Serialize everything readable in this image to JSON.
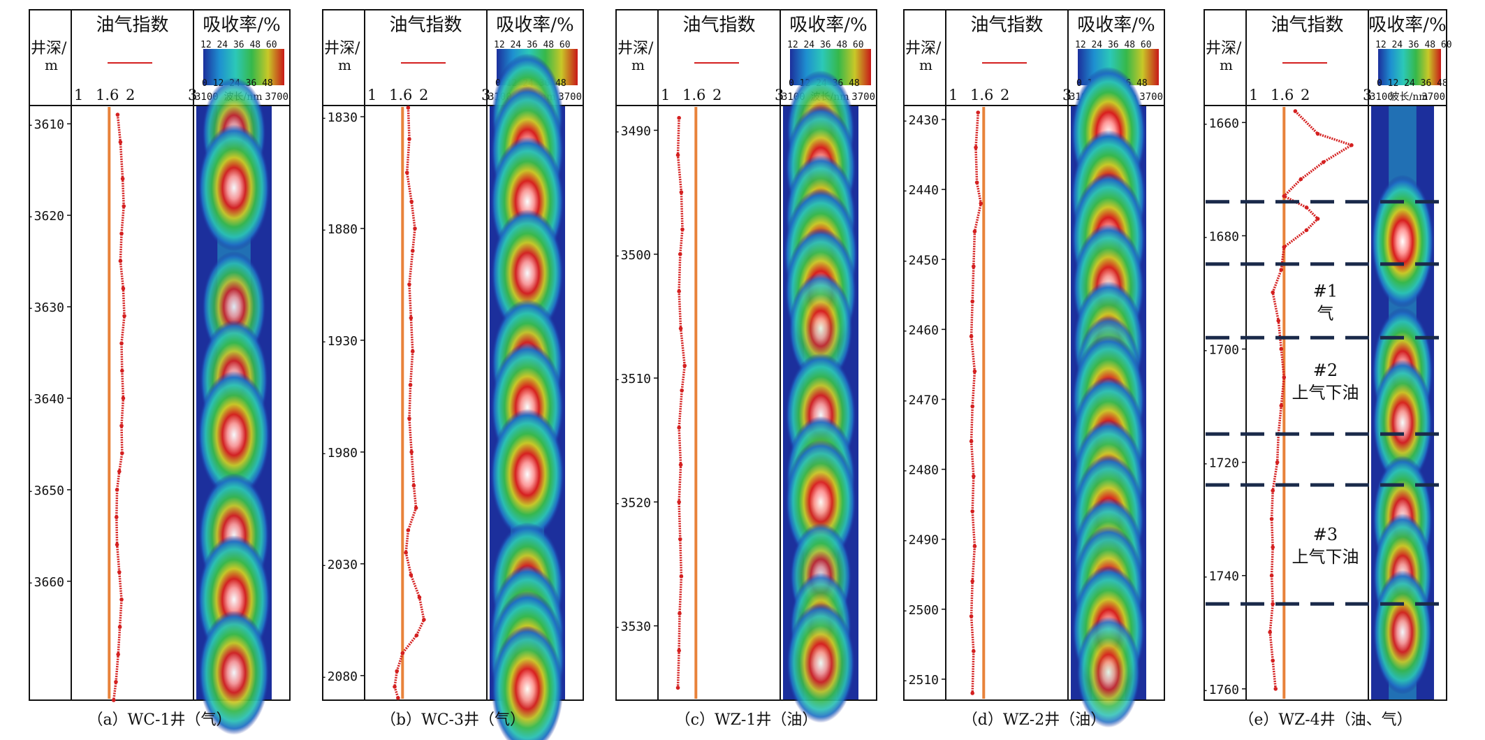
{
  "figure": {
    "header": {
      "depth_label_line1": "井深/",
      "depth_label_line2": "m",
      "oil_gas_title": "油气指数",
      "absorb_title": "吸收率/%",
      "oil_gas_ticks": [
        "1",
        "1.6",
        "2",
        "3"
      ],
      "colorbar_top_ticks": [
        "12",
        "24",
        "36",
        "48",
        "60"
      ],
      "colorbar_bottom_ticks": [
        "0",
        "12",
        "24",
        "36",
        "48"
      ],
      "wave_min": "3100",
      "wave_label": "波长/nm",
      "wave_max": "3700"
    },
    "colors": {
      "curve": "#d42020",
      "reference_line": "#e8823a",
      "colorbar": [
        "#1c2f9c",
        "#1e8fd0",
        "#2cc8b8",
        "#36b84a",
        "#c8c828",
        "#c81818"
      ],
      "zone_line": "#1a2a4a"
    }
  },
  "chart_data": [
    {
      "type": "line",
      "caption": "（a）WC-1井（气）",
      "depth_range": [
        3608,
        3673
      ],
      "depth_ticks": [
        3610,
        3620,
        3630,
        3640,
        3650,
        3660
      ],
      "oil_gas_index_xlim": [
        1,
        3
      ],
      "reference_value": 1.6,
      "series": [
        {
          "depth": [
            3609,
            3612,
            3616,
            3619,
            3622,
            3625,
            3628,
            3631,
            3634,
            3637,
            3640,
            3643,
            3646,
            3648,
            3650,
            3653,
            3656,
            3659,
            3662,
            3665,
            3668,
            3671,
            3673
          ],
          "value": [
            1.75,
            1.8,
            1.84,
            1.86,
            1.82,
            1.8,
            1.85,
            1.87,
            1.82,
            1.83,
            1.85,
            1.82,
            1.83,
            1.78,
            1.74,
            1.73,
            1.74,
            1.78,
            1.82,
            1.79,
            1.76,
            1.72,
            1.68
          ]
        }
      ],
      "absorption_bands": [
        {
          "center": 3611,
          "peak": 40
        },
        {
          "center": 3617,
          "peak": 54
        },
        {
          "center": 3630,
          "peak": 40
        },
        {
          "center": 3638,
          "peak": 48
        },
        {
          "center": 3644,
          "peak": 55
        },
        {
          "center": 3655,
          "peak": 52
        },
        {
          "center": 3662,
          "peak": 56
        },
        {
          "center": 3670,
          "peak": 52
        }
      ]
    },
    {
      "type": "line",
      "caption": "（b）WC-3井（气）",
      "depth_range": [
        1825,
        2091
      ],
      "depth_ticks": [
        1830,
        1880,
        1930,
        1980,
        2030,
        2080
      ],
      "oil_gas_index_xlim": [
        1,
        3
      ],
      "reference_value": 1.6,
      "series": [
        {
          "depth": [
            1826,
            1840,
            1855,
            1868,
            1880,
            1890,
            1905,
            1920,
            1935,
            1950,
            1965,
            1980,
            1995,
            2005,
            2015,
            2025,
            2035,
            2045,
            2055,
            2062,
            2070,
            2078,
            2085,
            2090
          ],
          "value": [
            1.7,
            1.72,
            1.68,
            1.76,
            1.82,
            1.78,
            1.72,
            1.75,
            1.78,
            1.74,
            1.72,
            1.76,
            1.8,
            1.84,
            1.7,
            1.66,
            1.75,
            1.9,
            1.98,
            1.85,
            1.6,
            1.5,
            1.46,
            1.52
          ]
        }
      ],
      "absorption_bands": [
        {
          "center": 1830,
          "peak": 54
        },
        {
          "center": 1845,
          "peak": 56
        },
        {
          "center": 1868,
          "peak": 57
        },
        {
          "center": 1900,
          "peak": 55
        },
        {
          "center": 1940,
          "peak": 54
        },
        {
          "center": 1960,
          "peak": 56
        },
        {
          "center": 1990,
          "peak": 58
        },
        {
          "center": 2040,
          "peak": 55
        },
        {
          "center": 2060,
          "peak": 58
        },
        {
          "center": 2072,
          "peak": 60
        },
        {
          "center": 2086,
          "peak": 54
        }
      ]
    },
    {
      "type": "line",
      "caption": "（c）WZ-1井（油）",
      "depth_range": [
        3488,
        3536
      ],
      "depth_ticks": [
        3490,
        3500,
        3510,
        3520,
        3530
      ],
      "oil_gas_index_xlim": [
        1,
        3
      ],
      "reference_value": 1.6,
      "series": [
        {
          "depth": [
            3489,
            3492,
            3495,
            3498,
            3500,
            3503,
            3506,
            3509,
            3511,
            3514,
            3517,
            3520,
            3523,
            3526,
            3529,
            3532,
            3535
          ],
          "value": [
            1.3,
            1.28,
            1.34,
            1.36,
            1.32,
            1.3,
            1.33,
            1.4,
            1.35,
            1.3,
            1.33,
            1.3,
            1.32,
            1.34,
            1.31,
            1.3,
            1.28
          ]
        }
      ],
      "absorption_bands": [
        {
          "center": 3490,
          "peak": 48
        },
        {
          "center": 3493,
          "peak": 52
        },
        {
          "center": 3497,
          "peak": 52
        },
        {
          "center": 3500,
          "peak": 58
        },
        {
          "center": 3503,
          "peak": 54
        },
        {
          "center": 3506,
          "peak": 40
        },
        {
          "center": 3513,
          "peak": 52
        },
        {
          "center": 3518,
          "peak": 50
        },
        {
          "center": 3520,
          "peak": 52
        },
        {
          "center": 3526,
          "peak": 36
        },
        {
          "center": 3530,
          "peak": 36
        },
        {
          "center": 3533,
          "peak": 48
        }
      ]
    },
    {
      "type": "line",
      "caption": "（d）WZ-2井（油）",
      "depth_range": [
        2428,
        2513
      ],
      "depth_ticks": [
        2430,
        2440,
        2450,
        2460,
        2470,
        2480,
        2490,
        2500,
        2510
      ],
      "oil_gas_index_xlim": [
        1,
        3
      ],
      "reference_value": 1.6,
      "series": [
        {
          "depth": [
            2429,
            2434,
            2439,
            2442,
            2446,
            2451,
            2456,
            2461,
            2466,
            2471,
            2476,
            2481,
            2486,
            2491,
            2496,
            2501,
            2506,
            2512
          ],
          "value": [
            1.5,
            1.46,
            1.48,
            1.55,
            1.44,
            1.42,
            1.4,
            1.38,
            1.44,
            1.4,
            1.38,
            1.42,
            1.4,
            1.44,
            1.4,
            1.38,
            1.42,
            1.4
          ]
        }
      ],
      "absorption_bands": [
        {
          "center": 2432,
          "peak": 60
        },
        {
          "center": 2441,
          "peak": 60
        },
        {
          "center": 2447,
          "peak": 58
        },
        {
          "center": 2454,
          "peak": 54
        },
        {
          "center": 2462,
          "peak": 52
        },
        {
          "center": 2466,
          "peak": 40
        },
        {
          "center": 2470,
          "peak": 56
        },
        {
          "center": 2476,
          "peak": 56
        },
        {
          "center": 2482,
          "peak": 54
        },
        {
          "center": 2487,
          "peak": 54
        },
        {
          "center": 2493,
          "peak": 52
        },
        {
          "center": 2497,
          "peak": 52
        },
        {
          "center": 2503,
          "peak": 56
        },
        {
          "center": 2509,
          "peak": 40
        }
      ]
    },
    {
      "type": "line",
      "caption": "（e）WZ-4井（油、气）",
      "depth_range": [
        1657,
        1762
      ],
      "depth_ticks": [
        1660,
        1680,
        1700,
        1720,
        1740,
        1760
      ],
      "oil_gas_index_xlim": [
        1,
        3
      ],
      "reference_value": 1.6,
      "series": [
        {
          "depth": [
            1658,
            1662,
            1664,
            1667,
            1670,
            1673,
            1675,
            1677,
            1679,
            1682,
            1686,
            1690,
            1695,
            1700,
            1705,
            1710,
            1715,
            1720,
            1725,
            1730,
            1735,
            1740,
            1745,
            1750,
            1755,
            1760
          ],
          "value": [
            1.8,
            2.2,
            2.8,
            2.3,
            1.9,
            1.6,
            2.0,
            2.2,
            2.0,
            1.6,
            1.55,
            1.4,
            1.5,
            1.55,
            1.6,
            1.55,
            1.5,
            1.48,
            1.4,
            1.38,
            1.4,
            1.38,
            1.4,
            1.35,
            1.4,
            1.45
          ]
        }
      ],
      "absorption_bands": [
        {
          "center": 1681,
          "peak": 60
        },
        {
          "center": 1704,
          "peak": 56
        },
        {
          "center": 1713,
          "peak": 54
        },
        {
          "center": 1730,
          "peak": 54
        },
        {
          "center": 1740,
          "peak": 52
        },
        {
          "center": 1750,
          "peak": 52
        }
      ],
      "zone_boundaries": [
        1674,
        1685,
        1698,
        1715,
        1724,
        1745
      ],
      "zones": [
        {
          "id": "#1",
          "label": "气",
          "center": 1692
        },
        {
          "id": "#2",
          "label": "上气下油",
          "center": 1706
        },
        {
          "id": "#3",
          "label": "上气下油",
          "center": 1735
        }
      ]
    }
  ]
}
